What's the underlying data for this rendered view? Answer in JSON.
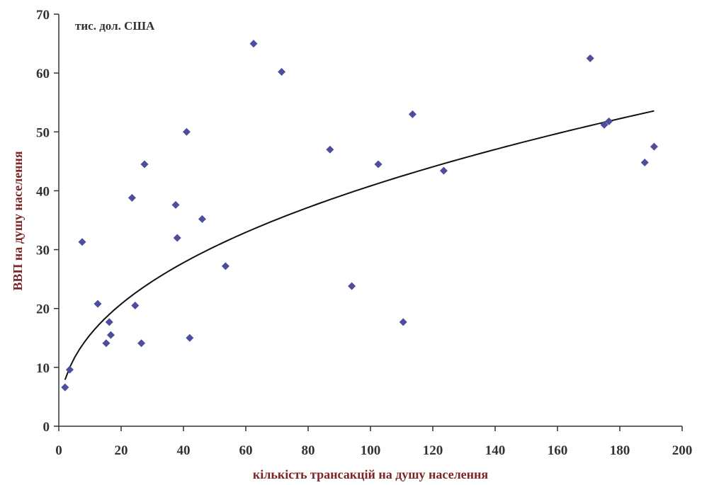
{
  "chart_data": {
    "type": "scatter",
    "unit_label": "тис. дол. США",
    "xlabel": "кількість трансакцій на душу населення",
    "ylabel": "ВВП на душу населення",
    "xlim": [
      0,
      200
    ],
    "ylim": [
      0,
      70
    ],
    "x_ticks": [
      "0",
      "20",
      "40",
      "60",
      "80",
      "100",
      "120",
      "140",
      "160",
      "180",
      "200"
    ],
    "y_ticks": [
      "0",
      "10",
      "20",
      "30",
      "40",
      "50",
      "60",
      "70"
    ],
    "grid": false,
    "legend": "none",
    "colors": {
      "points": "#4d4d9c",
      "trend": "#111111",
      "axis_title": "#7b2525",
      "axis": "#333333"
    },
    "series": [
      {
        "points": [
          {
            "x": 2,
            "y": 6.6
          },
          {
            "x": 3.5,
            "y": 9.6
          },
          {
            "x": 7.5,
            "y": 31.3
          },
          {
            "x": 12.5,
            "y": 20.8
          },
          {
            "x": 15.2,
            "y": 14.1
          },
          {
            "x": 16.2,
            "y": 17.7
          },
          {
            "x": 16.7,
            "y": 15.5
          },
          {
            "x": 23.5,
            "y": 38.8
          },
          {
            "x": 24.5,
            "y": 20.5
          },
          {
            "x": 26.5,
            "y": 14.1
          },
          {
            "x": 27.5,
            "y": 44.5
          },
          {
            "x": 37.5,
            "y": 37.6
          },
          {
            "x": 38,
            "y": 32.0
          },
          {
            "x": 41,
            "y": 50.0
          },
          {
            "x": 42,
            "y": 15.0
          },
          {
            "x": 46,
            "y": 35.2
          },
          {
            "x": 53.5,
            "y": 27.2
          },
          {
            "x": 62.5,
            "y": 65.0
          },
          {
            "x": 71.5,
            "y": 60.2
          },
          {
            "x": 87,
            "y": 47.0
          },
          {
            "x": 94,
            "y": 23.8
          },
          {
            "x": 102.5,
            "y": 44.5
          },
          {
            "x": 110.5,
            "y": 17.7
          },
          {
            "x": 113.5,
            "y": 53.0
          },
          {
            "x": 123.5,
            "y": 43.4
          },
          {
            "x": 170.5,
            "y": 62.5
          },
          {
            "x": 175,
            "y": 51.2
          },
          {
            "x": 176.5,
            "y": 51.8
          },
          {
            "x": 188,
            "y": 44.8
          },
          {
            "x": 191,
            "y": 47.5
          }
        ]
      }
    ],
    "trendline": {
      "type": "power",
      "a": 5.9,
      "b": 0.42,
      "x_range": [
        2,
        191
      ]
    }
  }
}
